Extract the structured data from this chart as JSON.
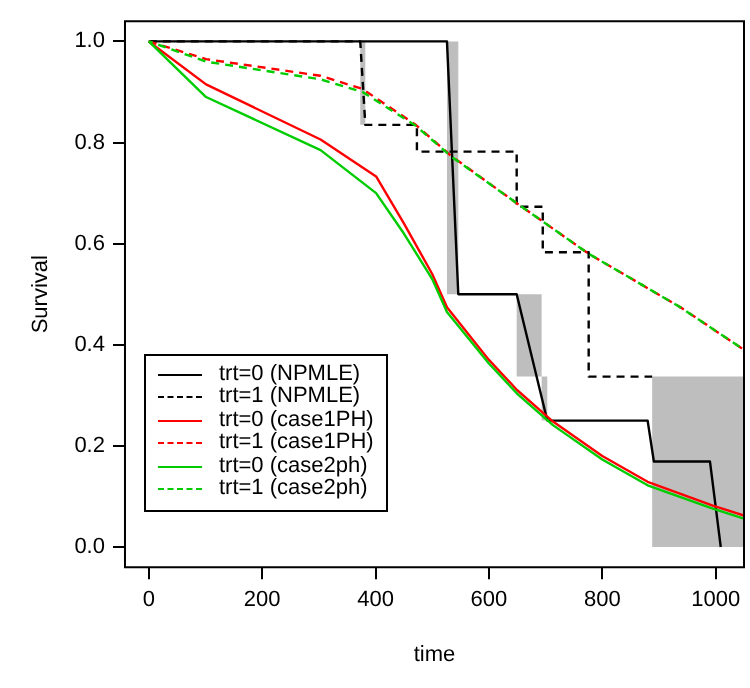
{
  "chart_data": {
    "type": "line",
    "xlabel": "time",
    "ylabel": "Survival",
    "xlim": [
      -42,
      1050
    ],
    "ylim": [
      -0.04,
      1.04
    ],
    "xticks": [
      0,
      200,
      400,
      600,
      800,
      1000
    ],
    "yticks": [
      {
        "value": 0,
        "label": "0.0"
      },
      {
        "value": 0.2,
        "label": "0.2"
      },
      {
        "value": 0.4,
        "label": "0.4"
      },
      {
        "value": 0.6,
        "label": "0.6"
      },
      {
        "value": 0.8,
        "label": "0.8"
      },
      {
        "value": 1,
        "label": "1.0"
      }
    ],
    "legend": "bottom left",
    "marker": "none",
    "series": [
      {
        "name": "trt=0 (NPMLE)",
        "color": "#000000",
        "line_style": "solid",
        "x": [
          0,
          526,
          526,
          546,
          546,
          649,
          649,
          693,
          693,
          703,
          703,
          880,
          891,
          990,
          1009
        ],
        "values": [
          1,
          1,
          1,
          0.5,
          0.5,
          0.5,
          0.5,
          0.296,
          0.296,
          0.25,
          0.25,
          0.25,
          0.169,
          0.169,
          0
        ],
        "lower": [
          1,
          1,
          0.5,
          0.5,
          0.5,
          0.5,
          0.337,
          0.337,
          0.25,
          0.25,
          0.25,
          0.25,
          0.169,
          0.169,
          0
        ],
        "upper": [
          1,
          1,
          1,
          1,
          0.5,
          0.5,
          0.5,
          0.5,
          0.337,
          0.337,
          0.25,
          0.25,
          0.169,
          0.169,
          0
        ]
      },
      {
        "name": "trt=1 (NPMLE)",
        "color": "#000000",
        "line_style": "dashed",
        "x": [
          0,
          373,
          373,
          382,
          382,
          473,
          473,
          649,
          649,
          695,
          695,
          776,
          776,
          888,
          888,
          1050
        ],
        "values": [
          1,
          1,
          1,
          0.835,
          0.835,
          0.835,
          0.782,
          0.782,
          0.673,
          0.673,
          0.583,
          0.583,
          0.337,
          0.337,
          0.337,
          null
        ],
        "lower": [
          1,
          1,
          0.835,
          0.835,
          0.835,
          0.835,
          0.782,
          0.782,
          0.673,
          0.673,
          0.583,
          0.583,
          0.337,
          0.337,
          0,
          0
        ],
        "upper": [
          1,
          1,
          1,
          1,
          0.835,
          0.835,
          0.782,
          0.782,
          0.673,
          0.673,
          0.583,
          0.583,
          0.337,
          0.337,
          0.337,
          0.337
        ]
      },
      {
        "name": "trt=0 (case1PH)",
        "color": "#ff0000",
        "line_style": "solid",
        "x": [
          0,
          101,
          303,
          401,
          450,
          500,
          526,
          600,
          650,
          713,
          800,
          880,
          995,
          1050
        ],
        "values": [
          1,
          0.915,
          0.806,
          0.733,
          0.64,
          0.54,
          0.474,
          0.37,
          0.31,
          0.248,
          0.18,
          0.129,
          0.082,
          0.062
        ]
      },
      {
        "name": "trt=1 (case1PH)",
        "color": "#ff0000",
        "line_style": "dashed",
        "x": [
          0,
          101,
          303,
          377,
          471,
          534,
          649,
          776,
          938,
          1050
        ],
        "values": [
          1,
          0.965,
          0.932,
          0.906,
          0.835,
          0.773,
          0.68,
          0.58,
          0.474,
          0.39
        ]
      },
      {
        "name": "trt=0 (case2ph)",
        "color": "#00cc00",
        "line_style": "solid",
        "x": [
          0,
          101,
          303,
          401,
          450,
          500,
          526,
          600,
          650,
          713,
          800,
          880,
          995,
          1050
        ],
        "values": [
          1,
          0.89,
          0.785,
          0.7,
          0.62,
          0.53,
          0.465,
          0.363,
          0.303,
          0.241,
          0.173,
          0.122,
          0.076,
          0.056
        ]
      },
      {
        "name": "trt=1 (case2ph)",
        "color": "#00cc00",
        "line_style": "dashed",
        "x": [
          0,
          101,
          303,
          377,
          471,
          534,
          649,
          776,
          938,
          1050
        ],
        "values": [
          1,
          0.96,
          0.925,
          0.9,
          0.833,
          0.772,
          0.68,
          0.58,
          0.474,
          0.39
        ]
      }
    ]
  }
}
